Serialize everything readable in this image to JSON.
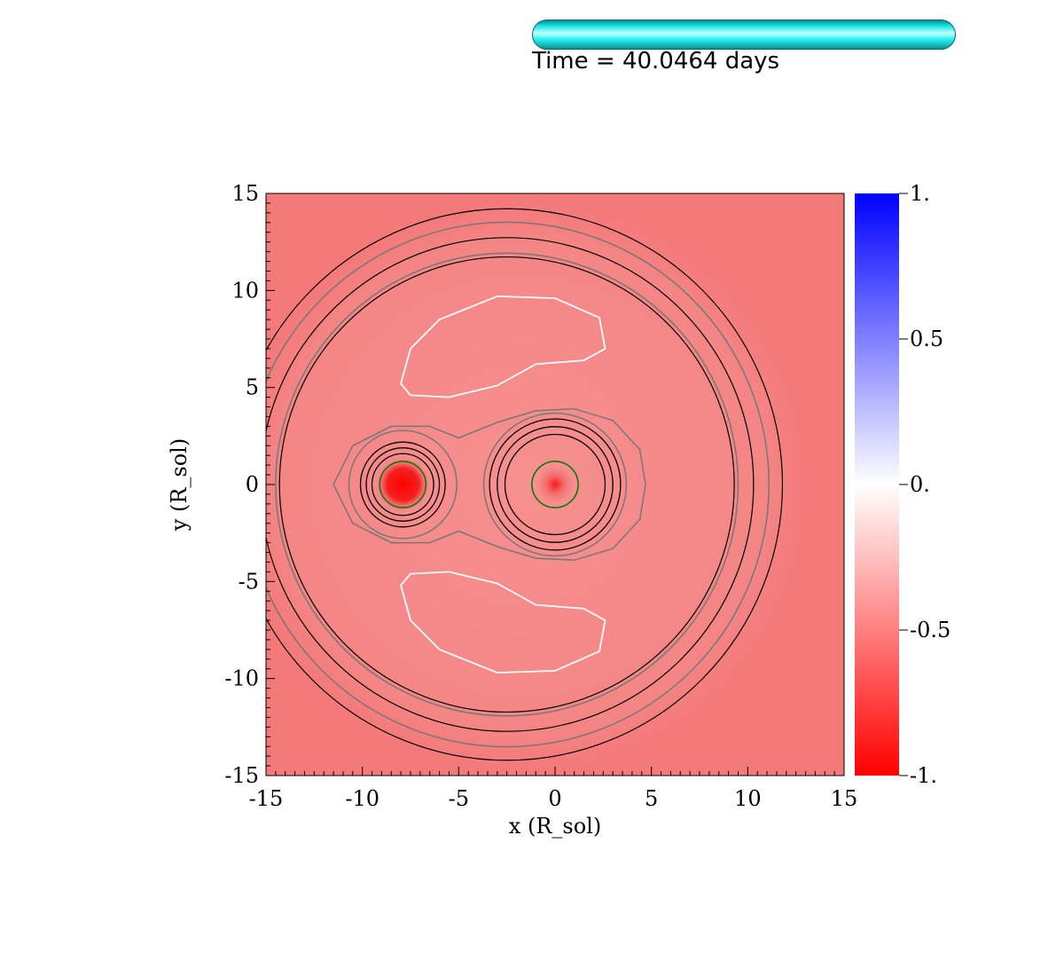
{
  "header": {
    "time_label": "Time = 40.0464 days",
    "progress_fraction": 1.0
  },
  "colors": {
    "field_base": "#f47a7a",
    "contour_outer": "#000000",
    "contour_mid": "#777777",
    "contour_lobe": "#ffffff",
    "contour_star": "#0b7a0b",
    "colorbar_low": "#ff0000",
    "colorbar_mid": "#ffffff",
    "colorbar_high": "#0000ff",
    "progress_bar": "#19e6e6"
  },
  "chart_data": {
    "type": "heatmap",
    "title": "",
    "xlabel": "x (R_sol)",
    "ylabel": "y (R_sol)",
    "xlim": [
      -15,
      15
    ],
    "ylim": [
      -15,
      15
    ],
    "x_ticks": [
      -15,
      -10,
      -5,
      0,
      5,
      10,
      15
    ],
    "x_tick_labels": [
      "-15",
      "-10",
      "-5",
      "0",
      "5",
      "10",
      "15"
    ],
    "y_ticks": [
      -15,
      -10,
      -5,
      0,
      5,
      10,
      15
    ],
    "y_tick_labels": [
      "-15",
      "-10",
      "-5",
      "0",
      "5",
      "10",
      "15"
    ],
    "field_value_typical": -0.6,
    "colorbar": {
      "range": [
        -1,
        1
      ],
      "ticks": [
        1,
        0.5,
        0,
        -0.5,
        -1
      ],
      "tick_labels": [
        "1.",
        "0.5",
        "0.",
        "-0.5",
        "-1."
      ]
    },
    "stars": [
      {
        "x": -7.9,
        "y": 0.0,
        "radius": 1.2
      },
      {
        "x": 0.0,
        "y": 0.0,
        "radius": 1.2
      }
    ],
    "outer_circles": {
      "center_x": -2.5,
      "radii": [
        11.8,
        12.8,
        14.3
      ]
    },
    "mid_circle": {
      "center_x": -2.5,
      "radius": 12.0
    },
    "mid_circle_2": {
      "center_x": -2.5,
      "radius": 13.6
    },
    "star1_rings": [
      1.6,
      1.9,
      2.2
    ],
    "star2_rings": [
      2.6,
      3.0,
      3.4
    ],
    "star1_outer_ring": 2.8,
    "star2_outer_ring": 3.7,
    "common_envelope_contour": [
      [
        -5.0,
        2.4
      ],
      [
        -3.0,
        3.2
      ],
      [
        -1.0,
        3.8
      ],
      [
        1.0,
        3.9
      ],
      [
        3.0,
        3.3
      ],
      [
        4.4,
        1.8
      ],
      [
        4.7,
        0.0
      ],
      [
        4.4,
        -1.8
      ],
      [
        3.0,
        -3.3
      ],
      [
        1.0,
        -3.9
      ],
      [
        -1.0,
        -3.8
      ],
      [
        -3.0,
        -3.2
      ],
      [
        -5.0,
        -2.4
      ],
      [
        -6.5,
        -3.0
      ],
      [
        -8.5,
        -3.0
      ],
      [
        -10.5,
        -2.0
      ],
      [
        -11.5,
        0.0
      ],
      [
        -10.5,
        2.0
      ],
      [
        -8.5,
        3.0
      ],
      [
        -6.5,
        3.0
      ]
    ],
    "upper_lobe": [
      [
        -8.0,
        5.2
      ],
      [
        -7.5,
        7.0
      ],
      [
        -6.0,
        8.5
      ],
      [
        -3.0,
        9.7
      ],
      [
        0.0,
        9.6
      ],
      [
        2.3,
        8.6
      ],
      [
        2.6,
        7.0
      ],
      [
        1.5,
        6.4
      ],
      [
        -1.0,
        6.2
      ],
      [
        -3.0,
        5.1
      ],
      [
        -5.5,
        4.5
      ],
      [
        -7.5,
        4.6
      ]
    ],
    "lower_lobe": [
      [
        -8.0,
        -5.2
      ],
      [
        -7.5,
        -7.0
      ],
      [
        -6.0,
        -8.5
      ],
      [
        -3.0,
        -9.7
      ],
      [
        0.0,
        -9.6
      ],
      [
        2.3,
        -8.6
      ],
      [
        2.6,
        -7.0
      ],
      [
        1.5,
        -6.4
      ],
      [
        -1.0,
        -6.2
      ],
      [
        -3.0,
        -5.1
      ],
      [
        -5.5,
        -4.5
      ],
      [
        -7.5,
        -4.6
      ]
    ]
  }
}
